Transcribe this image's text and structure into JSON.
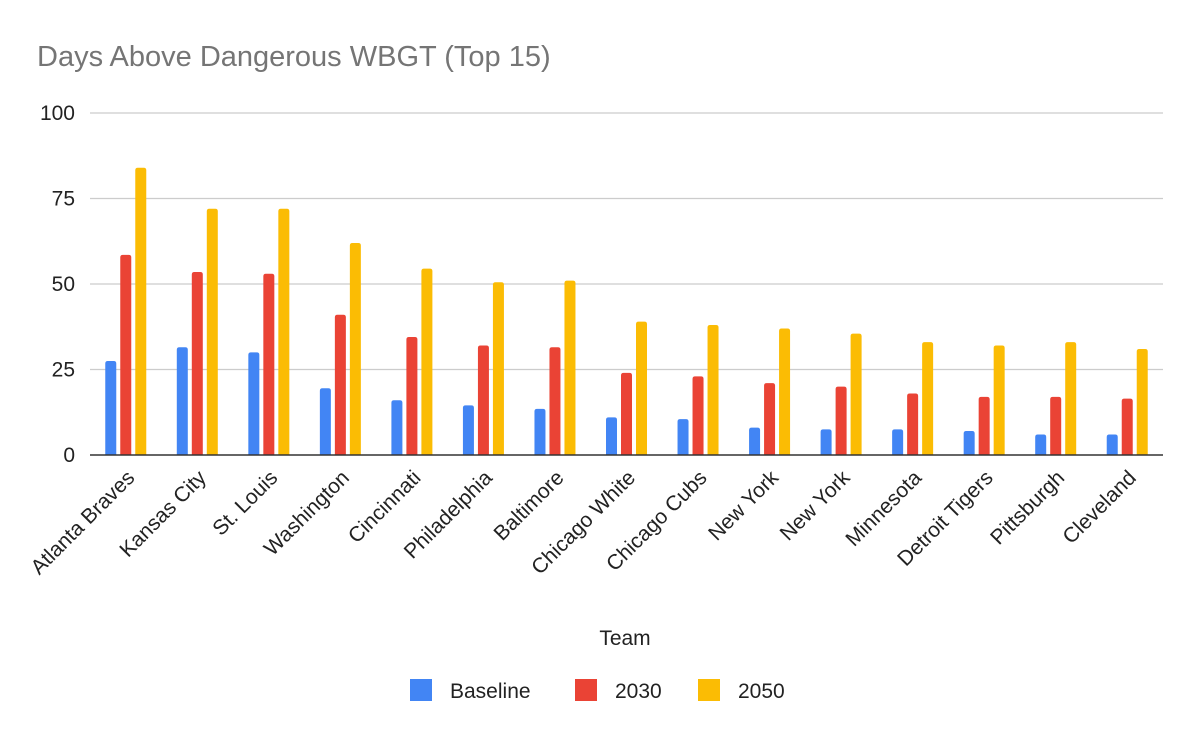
{
  "chart_data": {
    "type": "bar",
    "title": "Days Above Dangerous WBGT (Top 15)",
    "xlabel": "Team",
    "ylabel": "",
    "ylim": [
      0,
      100
    ],
    "yticks": [
      0,
      25,
      50,
      75,
      100
    ],
    "grid": true,
    "legend_position": "bottom",
    "categories": [
      "Atlanta Braves",
      "Kansas City",
      "St. Louis",
      "Washington",
      "Cincinnati",
      "Philadelphia",
      "Baltimore",
      "Chicago White",
      "Chicago Cubs",
      "New York",
      "New York",
      "Minnesota",
      "Detroit Tigers",
      "Pittsburgh",
      "Cleveland"
    ],
    "series": [
      {
        "name": "Baseline",
        "color": "#4285f4",
        "values": [
          27.5,
          31.5,
          30,
          19.5,
          16,
          14.5,
          13.5,
          11,
          10.5,
          8,
          7.5,
          7.5,
          7,
          6,
          6
        ]
      },
      {
        "name": "2030",
        "color": "#ea4335",
        "values": [
          58.5,
          53.5,
          53,
          41,
          34.5,
          32,
          31.5,
          24,
          23,
          21,
          20,
          18,
          17,
          17,
          16.5
        ]
      },
      {
        "name": "2050",
        "color": "#fbbc04",
        "values": [
          84,
          72,
          72,
          62,
          54.5,
          50.5,
          51,
          39,
          38,
          37,
          35.5,
          33,
          32,
          33,
          31
        ]
      }
    ]
  }
}
